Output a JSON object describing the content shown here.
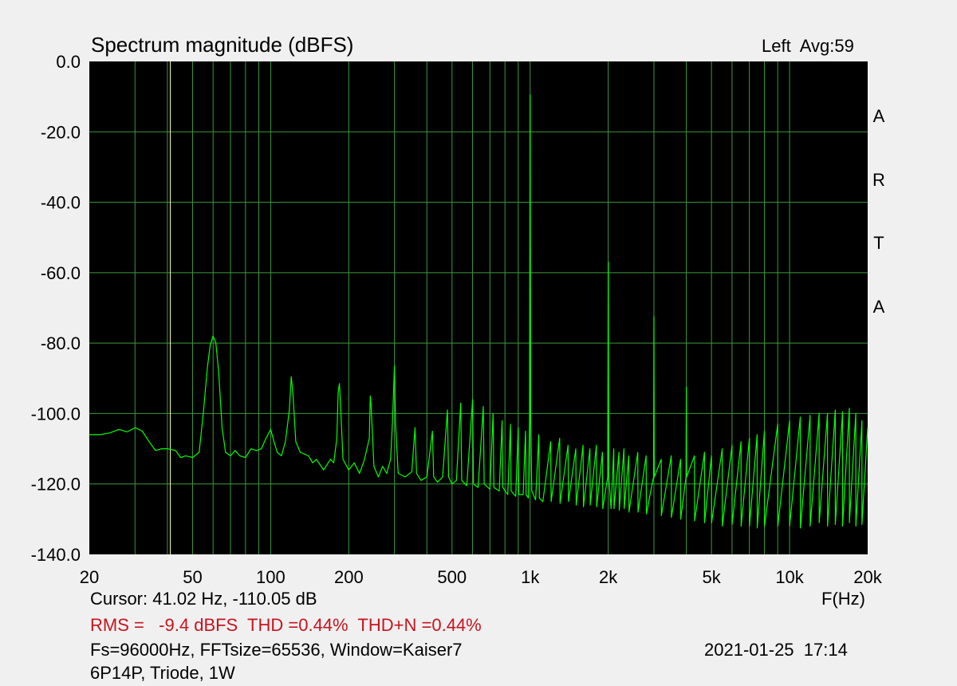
{
  "header": {
    "title": "Spectrum magnitude (dBFS)",
    "channel_avg": "Left  Avg:59",
    "brand_letters": [
      "A",
      "R",
      "T",
      "A"
    ]
  },
  "footer": {
    "cursor": "Cursor: 41.02 Hz, -110.05 dB",
    "x_unit": "F(Hz)",
    "stats": "RMS =   -9.4 dBFS  THD =0.44%  THD+N =0.44%",
    "info": "Fs=96000Hz, FFTsize=65536, Window=Kaiser7",
    "datetime": "2021-01-25  17:14",
    "device": "6P14P, Triode, 1W"
  },
  "colors": {
    "plot_background": "#000000",
    "grid": "#3c9a3c",
    "trace": "#00ff00",
    "cursor_line": "#ffff9a",
    "stats_text": "#c8141e",
    "page_background": "#f0f0f0"
  },
  "chart_data": {
    "type": "line",
    "x_scale": "log",
    "xlim": [
      20,
      20000
    ],
    "ylim": [
      -140,
      0
    ],
    "y_ticks": [
      {
        "value": 0,
        "label": "0.0"
      },
      {
        "value": -20,
        "label": "-20.0"
      },
      {
        "value": -40,
        "label": "-40.0"
      },
      {
        "value": -60,
        "label": "-60.0"
      },
      {
        "value": -80,
        "label": "-80.0"
      },
      {
        "value": -100,
        "label": "-100.0"
      },
      {
        "value": -120,
        "label": "-120.0"
      },
      {
        "value": -140,
        "label": "-140.0"
      }
    ],
    "x_ticks": [
      {
        "value": 20,
        "label": "20"
      },
      {
        "value": 50,
        "label": "50"
      },
      {
        "value": 100,
        "label": "100"
      },
      {
        "value": 200,
        "label": "200"
      },
      {
        "value": 500,
        "label": "500"
      },
      {
        "value": 1000,
        "label": "1k"
      },
      {
        "value": 2000,
        "label": "2k"
      },
      {
        "value": 5000,
        "label": "5k"
      },
      {
        "value": 10000,
        "label": "10k"
      },
      {
        "value": 20000,
        "label": "20k"
      }
    ],
    "grid_x": [
      30,
      40,
      50,
      60,
      70,
      80,
      90,
      100,
      200,
      300,
      400,
      500,
      600,
      700,
      800,
      900,
      1000,
      2000,
      3000,
      4000,
      5000,
      6000,
      7000,
      8000,
      9000,
      10000
    ],
    "grid_y": [
      -20,
      -40,
      -60,
      -80,
      -100,
      -120
    ],
    "grid": true,
    "cursor_x": 41.02,
    "cursor_y": -110.05,
    "series": [
      {
        "points": [
          [
            20,
            -106
          ],
          [
            22,
            -106
          ],
          [
            24,
            -105.5
          ],
          [
            26,
            -104.5
          ],
          [
            28,
            -105.2
          ],
          [
            30,
            -104
          ],
          [
            32,
            -105
          ],
          [
            34,
            -108
          ],
          [
            36,
            -110.5
          ],
          [
            38,
            -110
          ],
          [
            40,
            -110
          ],
          [
            43,
            -110.5
          ],
          [
            45,
            -112.5
          ],
          [
            47,
            -112
          ],
          [
            50,
            -112.5
          ],
          [
            53,
            -111
          ],
          [
            55,
            -100
          ],
          [
            57,
            -87
          ],
          [
            58.5,
            -80.5
          ],
          [
            60,
            -78
          ],
          [
            61.5,
            -80
          ],
          [
            63,
            -88
          ],
          [
            65,
            -104
          ],
          [
            67,
            -111
          ],
          [
            70,
            -112
          ],
          [
            73,
            -110.5
          ],
          [
            76,
            -112
          ],
          [
            80,
            -112.5
          ],
          [
            84,
            -110
          ],
          [
            88,
            -110.5
          ],
          [
            92,
            -110
          ],
          [
            96,
            -107
          ],
          [
            100,
            -104.5
          ],
          [
            103,
            -108
          ],
          [
            106,
            -111
          ],
          [
            110,
            -112
          ],
          [
            114,
            -108
          ],
          [
            118,
            -99
          ],
          [
            120,
            -89.5
          ],
          [
            122,
            -95
          ],
          [
            125,
            -108
          ],
          [
            130,
            -111
          ],
          [
            140,
            -112
          ],
          [
            145,
            -114
          ],
          [
            150,
            -113
          ],
          [
            160,
            -116
          ],
          [
            170,
            -113
          ],
          [
            175,
            -114
          ],
          [
            180,
            -107
          ],
          [
            182,
            -94
          ],
          [
            184,
            -91.5
          ],
          [
            186,
            -98
          ],
          [
            190,
            -113
          ],
          [
            200,
            -116
          ],
          [
            210,
            -114
          ],
          [
            220,
            -117
          ],
          [
            230,
            -113
          ],
          [
            240,
            -107
          ],
          [
            242,
            -95
          ],
          [
            244,
            -98
          ],
          [
            250,
            -115
          ],
          [
            260,
            -118
          ],
          [
            270,
            -115
          ],
          [
            280,
            -117
          ],
          [
            290,
            -113
          ],
          [
            295,
            -102
          ],
          [
            300,
            -86.5
          ],
          [
            303,
            -103
          ],
          [
            310,
            -117
          ],
          [
            330,
            -118
          ],
          [
            350,
            -116.5
          ],
          [
            360,
            -104
          ],
          [
            365,
            -117
          ],
          [
            380,
            -119
          ],
          [
            400,
            -118
          ],
          [
            420,
            -105
          ],
          [
            425,
            -118
          ],
          [
            440,
            -119.5
          ],
          [
            460,
            -118
          ],
          [
            480,
            -99
          ],
          [
            485,
            -118
          ],
          [
            500,
            -120
          ],
          [
            520,
            -119
          ],
          [
            540,
            -97
          ],
          [
            545,
            -119
          ],
          [
            570,
            -120.5
          ],
          [
            600,
            -96
          ],
          [
            605,
            -120
          ],
          [
            630,
            -121
          ],
          [
            660,
            -98
          ],
          [
            665,
            -120
          ],
          [
            700,
            -121.5
          ],
          [
            720,
            -100
          ],
          [
            725,
            -121
          ],
          [
            760,
            -122
          ],
          [
            780,
            -102
          ],
          [
            785,
            -121
          ],
          [
            820,
            -123
          ],
          [
            840,
            -103
          ],
          [
            845,
            -122
          ],
          [
            880,
            -123.5
          ],
          [
            900,
            -104
          ],
          [
            905,
            -123
          ],
          [
            940,
            -123
          ],
          [
            960,
            -105
          ],
          [
            965,
            -123
          ],
          [
            985,
            -124
          ],
          [
            995,
            -100
          ],
          [
            1000,
            -9.5
          ],
          [
            1005,
            -100
          ],
          [
            1015,
            -122
          ],
          [
            1050,
            -124.5
          ],
          [
            1080,
            -106
          ],
          [
            1085,
            -124
          ],
          [
            1120,
            -125
          ],
          [
            1200,
            -108
          ],
          [
            1205,
            -125
          ],
          [
            1300,
            -107
          ],
          [
            1305,
            -125.5
          ],
          [
            1400,
            -109
          ],
          [
            1405,
            -125
          ],
          [
            1500,
            -110
          ],
          [
            1505,
            -126
          ],
          [
            1600,
            -109
          ],
          [
            1605,
            -126.5
          ],
          [
            1700,
            -110
          ],
          [
            1705,
            -126
          ],
          [
            1800,
            -109
          ],
          [
            1805,
            -126.5
          ],
          [
            1900,
            -111
          ],
          [
            1905,
            -127
          ],
          [
            1990,
            -118
          ],
          [
            2000,
            -57
          ],
          [
            2010,
            -118
          ],
          [
            2050,
            -127
          ],
          [
            2100,
            -110
          ],
          [
            2105,
            -127
          ],
          [
            2200,
            -111
          ],
          [
            2205,
            -127.5
          ],
          [
            2300,
            -110
          ],
          [
            2305,
            -127
          ],
          [
            2400,
            -112
          ],
          [
            2405,
            -128
          ],
          [
            2600,
            -111
          ],
          [
            2605,
            -128
          ],
          [
            2800,
            -112
          ],
          [
            2805,
            -128.5
          ],
          [
            2990,
            -118
          ],
          [
            3000,
            -72.5
          ],
          [
            3010,
            -118
          ],
          [
            3200,
            -113
          ],
          [
            3205,
            -129
          ],
          [
            3500,
            -112
          ],
          [
            3505,
            -129.5
          ],
          [
            3800,
            -113
          ],
          [
            3805,
            -130
          ],
          [
            3990,
            -118
          ],
          [
            4000,
            -92.5
          ],
          [
            4010,
            -118
          ],
          [
            4300,
            -112
          ],
          [
            4305,
            -130.5
          ],
          [
            4700,
            -111
          ],
          [
            4705,
            -131
          ],
          [
            5000,
            -112
          ],
          [
            5005,
            -131
          ],
          [
            5500,
            -110
          ],
          [
            5505,
            -132
          ],
          [
            6000,
            -109
          ],
          [
            6005,
            -131.5
          ],
          [
            6500,
            -108
          ],
          [
            6505,
            -132
          ],
          [
            7000,
            -107
          ],
          [
            7005,
            -132
          ],
          [
            7500,
            -106
          ],
          [
            7505,
            -132.5
          ],
          [
            8000,
            -105
          ],
          [
            8005,
            -132
          ],
          [
            9000,
            -103
          ],
          [
            9005,
            -132
          ],
          [
            10000,
            -102
          ],
          [
            10005,
            -132
          ],
          [
            11000,
            -101
          ],
          [
            11005,
            -132.5
          ],
          [
            12000,
            -100.5
          ],
          [
            12005,
            -132
          ],
          [
            13000,
            -100
          ],
          [
            13005,
            -131
          ],
          [
            14000,
            -100
          ],
          [
            14005,
            -132
          ],
          [
            15000,
            -99
          ],
          [
            15005,
            -131.5
          ],
          [
            16000,
            -99.5
          ],
          [
            16005,
            -132
          ],
          [
            17000,
            -98.5
          ],
          [
            17005,
            -131
          ],
          [
            18000,
            -100
          ],
          [
            18005,
            -132
          ],
          [
            19000,
            -102
          ],
          [
            19005,
            -131.5
          ],
          [
            20000,
            -104
          ]
        ]
      }
    ]
  }
}
